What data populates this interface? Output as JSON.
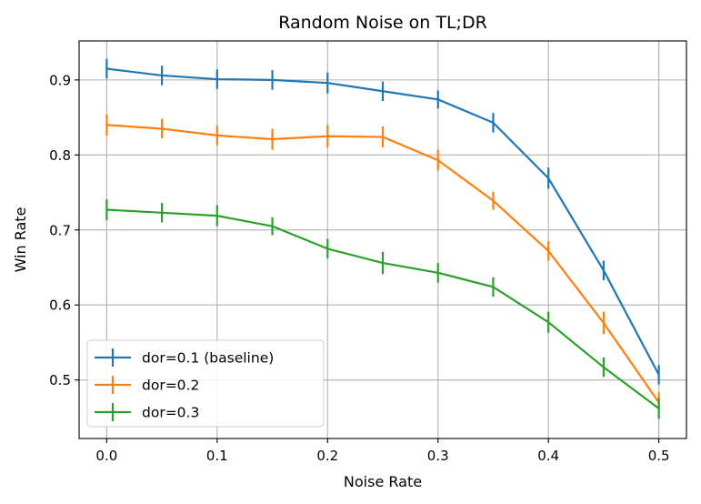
{
  "chart_data": {
    "type": "line",
    "title": "Random Noise on TL;DR",
    "xlabel": "Noise Rate",
    "ylabel": "Win Rate",
    "xlim": [
      -0.025,
      0.525
    ],
    "ylim": [
      0.422,
      0.952
    ],
    "xticks": [
      0.0,
      0.1,
      0.2,
      0.3,
      0.4,
      0.5
    ],
    "xtick_labels": [
      "0.0",
      "0.1",
      "0.2",
      "0.3",
      "0.4",
      "0.5"
    ],
    "yticks": [
      0.5,
      0.6,
      0.7,
      0.8,
      0.9
    ],
    "ytick_labels": [
      "0.5",
      "0.6",
      "0.7",
      "0.8",
      "0.9"
    ],
    "grid": true,
    "legend_position": "lower-left",
    "x": [
      0.0,
      0.05,
      0.1,
      0.15,
      0.2,
      0.25,
      0.3,
      0.35,
      0.4,
      0.45,
      0.5
    ],
    "series": [
      {
        "name": "dor=0.1 (baseline)",
        "color": "#1f77b4",
        "values": [
          0.915,
          0.906,
          0.901,
          0.9,
          0.896,
          0.885,
          0.874,
          0.843,
          0.769,
          0.646,
          0.507
        ],
        "errors": [
          0.013,
          0.013,
          0.013,
          0.013,
          0.014,
          0.013,
          0.012,
          0.013,
          0.014,
          0.013,
          0.013
        ]
      },
      {
        "name": "dor=0.2",
        "color": "#ff7f0e",
        "values": [
          0.84,
          0.835,
          0.826,
          0.821,
          0.825,
          0.824,
          0.793,
          0.739,
          0.672,
          0.576,
          0.47
        ],
        "errors": [
          0.014,
          0.013,
          0.013,
          0.014,
          0.015,
          0.014,
          0.014,
          0.012,
          0.013,
          0.015,
          0.014
        ]
      },
      {
        "name": "dor=0.3",
        "color": "#2ca02c",
        "values": [
          0.727,
          0.723,
          0.719,
          0.705,
          0.675,
          0.656,
          0.643,
          0.624,
          0.577,
          0.517,
          0.462
        ],
        "errors": [
          0.014,
          0.013,
          0.014,
          0.012,
          0.013,
          0.015,
          0.013,
          0.013,
          0.014,
          0.013,
          0.014
        ]
      }
    ]
  }
}
